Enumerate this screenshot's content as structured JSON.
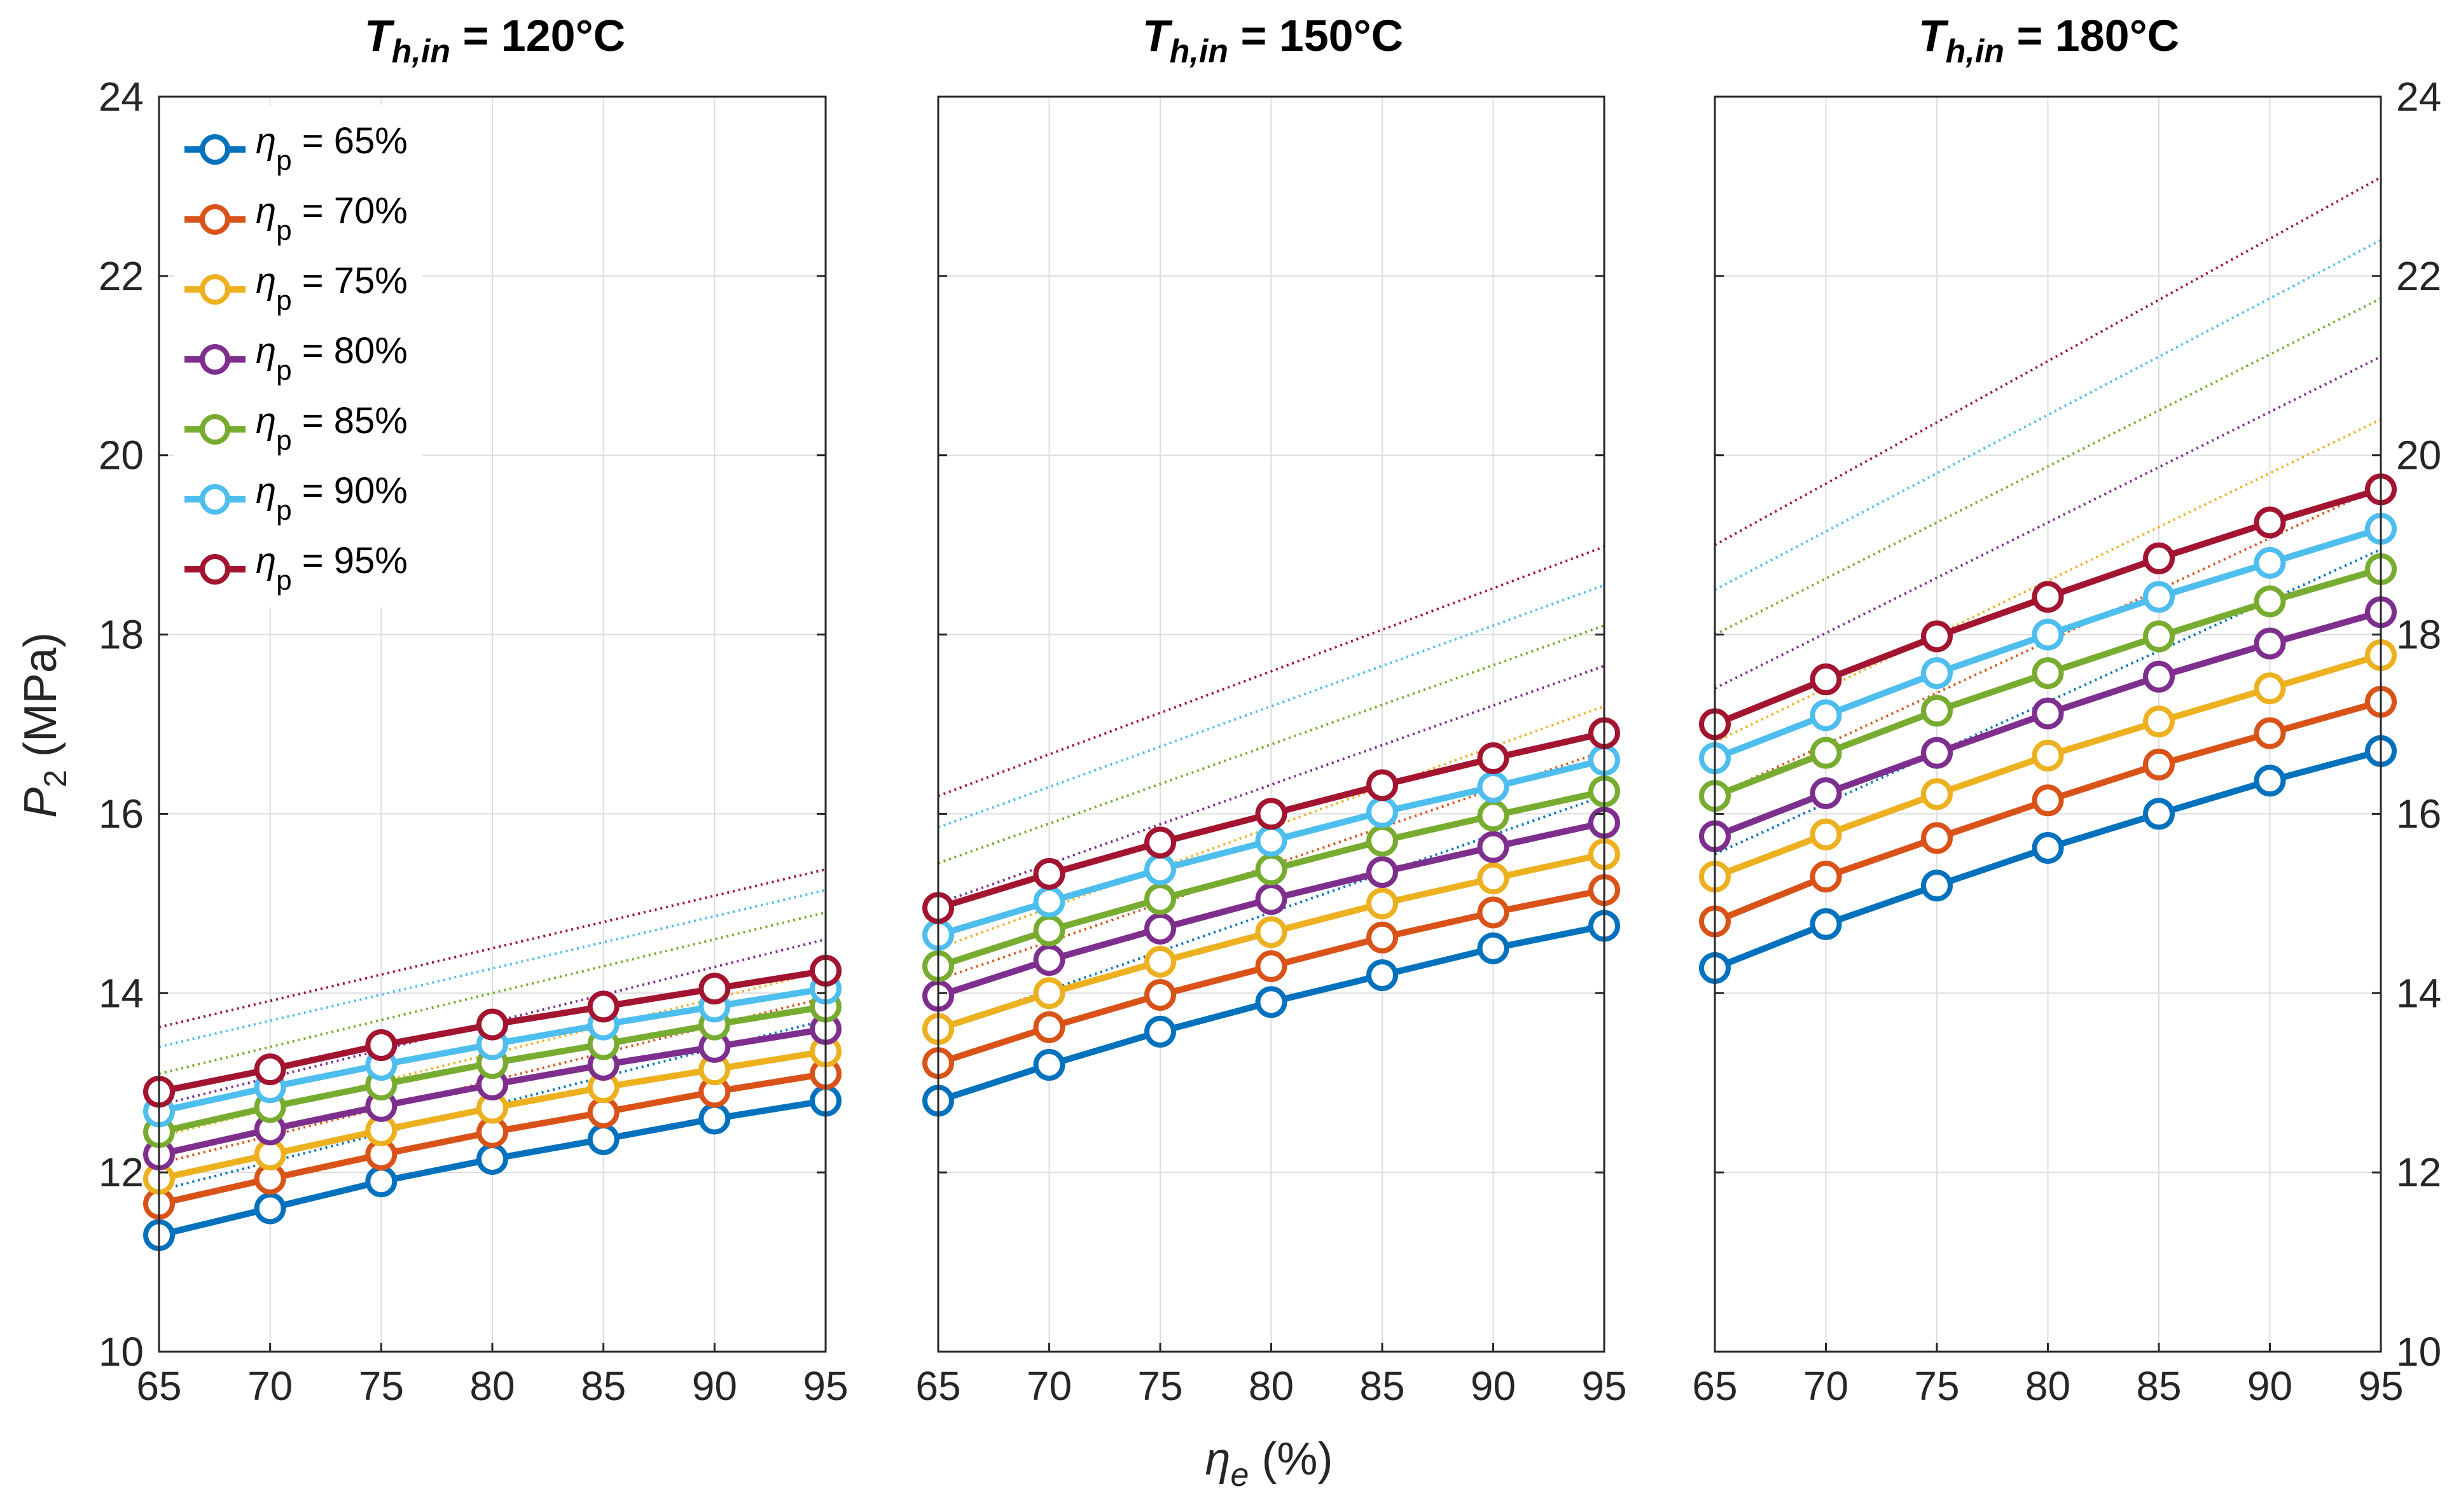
{
  "chart_data": {
    "type": "line",
    "x": [
      65,
      70,
      75,
      80,
      85,
      90,
      95
    ],
    "xticks": [
      "65",
      "70",
      "75",
      "80",
      "85",
      "90",
      "95"
    ],
    "yticks": [
      "10",
      "12",
      "14",
      "16",
      "18",
      "20",
      "22",
      "24"
    ],
    "xlim": [
      65,
      95
    ],
    "ylim": [
      10,
      24
    ],
    "xlabel_main": "η",
    "xlabel_sub": "e",
    "xlabel_unit": " (%)",
    "ylabel_main": "P",
    "ylabel_sub": "2",
    "ylabel_unit": " (MPa)",
    "grid": true,
    "legend_position": "top-left",
    "colors": [
      "#0072bd",
      "#d95319",
      "#edb120",
      "#7e2f8e",
      "#77ac30",
      "#4dbeee",
      "#a2142f"
    ],
    "legend": [
      {
        "symbol": "η",
        "sub": "p",
        "label": " = 65%"
      },
      {
        "symbol": "η",
        "sub": "p",
        "label": " = 70%"
      },
      {
        "symbol": "η",
        "sub": "p",
        "label": " = 75%"
      },
      {
        "symbol": "η",
        "sub": "p",
        "label": " = 80%"
      },
      {
        "symbol": "η",
        "sub": "p",
        "label": " = 85%"
      },
      {
        "symbol": "η",
        "sub": "p",
        "label": " = 90%"
      },
      {
        "symbol": "η",
        "sub": "p",
        "label": " = 95%"
      }
    ],
    "panels": [
      {
        "title_var": "T",
        "title_sub": "h,in",
        "title_value": " = 120°C",
        "series": [
          {
            "name": "ηp = 65%",
            "values": [
              11.3,
              11.6,
              11.9,
              12.15,
              12.37,
              12.6,
              12.8
            ]
          },
          {
            "name": "ηp = 70%",
            "values": [
              11.65,
              11.93,
              12.2,
              12.45,
              12.67,
              12.9,
              13.1
            ]
          },
          {
            "name": "ηp = 75%",
            "values": [
              11.93,
              12.2,
              12.47,
              12.72,
              12.95,
              13.15,
              13.35
            ]
          },
          {
            "name": "ηp = 80%",
            "values": [
              12.2,
              12.48,
              12.74,
              12.98,
              13.2,
              13.4,
              13.6
            ]
          },
          {
            "name": "ηp = 85%",
            "values": [
              12.45,
              12.73,
              12.98,
              13.22,
              13.43,
              13.65,
              13.85
            ]
          },
          {
            "name": "ηp = 90%",
            "values": [
              12.68,
              12.95,
              13.2,
              13.43,
              13.65,
              13.85,
              14.05
            ]
          },
          {
            "name": "ηp = 95%",
            "values": [
              12.9,
              13.15,
              13.42,
              13.65,
              13.85,
              14.05,
              14.25
            ]
          }
        ],
        "reference": [
          {
            "start": 11.8,
            "end": 13.7
          },
          {
            "start": 12.1,
            "end": 13.95
          },
          {
            "start": 12.4,
            "end": 14.25
          },
          {
            "start": 12.75,
            "end": 14.6
          },
          {
            "start": 13.1,
            "end": 14.9
          },
          {
            "start": 13.4,
            "end": 15.15
          },
          {
            "start": 13.62,
            "end": 15.38
          }
        ]
      },
      {
        "title_var": "T",
        "title_sub": "h,in",
        "title_value": " = 150°C",
        "series": [
          {
            "name": "ηp = 65%",
            "values": [
              12.8,
              13.2,
              13.57,
              13.9,
              14.2,
              14.5,
              14.75
            ]
          },
          {
            "name": "ηp = 70%",
            "values": [
              13.22,
              13.62,
              13.98,
              14.3,
              14.62,
              14.9,
              15.15
            ]
          },
          {
            "name": "ηp = 75%",
            "values": [
              13.6,
              14.0,
              14.35,
              14.68,
              15.0,
              15.28,
              15.55
            ]
          },
          {
            "name": "ηp = 80%",
            "values": [
              13.97,
              14.37,
              14.72,
              15.05,
              15.35,
              15.63,
              15.9
            ]
          },
          {
            "name": "ηp = 85%",
            "values": [
              14.3,
              14.7,
              15.05,
              15.38,
              15.7,
              15.98,
              16.25
            ]
          },
          {
            "name": "ηp = 90%",
            "values": [
              14.65,
              15.02,
              15.38,
              15.7,
              16.02,
              16.3,
              16.6
            ]
          },
          {
            "name": "ηp = 95%",
            "values": [
              14.95,
              15.33,
              15.68,
              16.0,
              16.32,
              16.62,
              16.9
            ]
          }
        ],
        "reference": [
          {
            "start": 13.6,
            "end": 16.2
          },
          {
            "start": 14.15,
            "end": 16.7
          },
          {
            "start": 14.5,
            "end": 17.2
          },
          {
            "start": 15.0,
            "end": 17.65
          },
          {
            "start": 15.45,
            "end": 18.1
          },
          {
            "start": 15.85,
            "end": 18.55
          },
          {
            "start": 16.2,
            "end": 18.98
          }
        ]
      },
      {
        "title_var": "T",
        "title_sub": "h,in",
        "title_value": " = 180°C",
        "series": [
          {
            "name": "ηp = 65%",
            "values": [
              14.28,
              14.77,
              15.2,
              15.62,
              16.0,
              16.37,
              16.7
            ]
          },
          {
            "name": "ηp = 70%",
            "values": [
              14.8,
              15.3,
              15.73,
              16.15,
              16.55,
              16.9,
              17.25
            ]
          },
          {
            "name": "ηp = 75%",
            "values": [
              15.3,
              15.77,
              16.22,
              16.65,
              17.03,
              17.4,
              17.77
            ]
          },
          {
            "name": "ηp = 80%",
            "values": [
              15.75,
              16.23,
              16.68,
              17.12,
              17.53,
              17.9,
              18.25
            ]
          },
          {
            "name": "ηp = 85%",
            "values": [
              16.2,
              16.68,
              17.15,
              17.57,
              17.98,
              18.37,
              18.73
            ]
          },
          {
            "name": "ηp = 90%",
            "values": [
              16.62,
              17.1,
              17.57,
              18.0,
              18.42,
              18.8,
              19.18
            ]
          },
          {
            "name": "ηp = 95%",
            "values": [
              17.0,
              17.5,
              17.98,
              18.42,
              18.85,
              19.25,
              19.62
            ]
          }
        ],
        "reference": [
          {
            "start": 15.55,
            "end": 18.95
          },
          {
            "start": 16.2,
            "end": 19.65
          },
          {
            "start": 16.8,
            "end": 20.4
          },
          {
            "start": 17.4,
            "end": 21.1
          },
          {
            "start": 18.0,
            "end": 21.75
          },
          {
            "start": 18.5,
            "end": 22.4
          },
          {
            "start": 19.0,
            "end": 23.1
          }
        ]
      }
    ]
  }
}
